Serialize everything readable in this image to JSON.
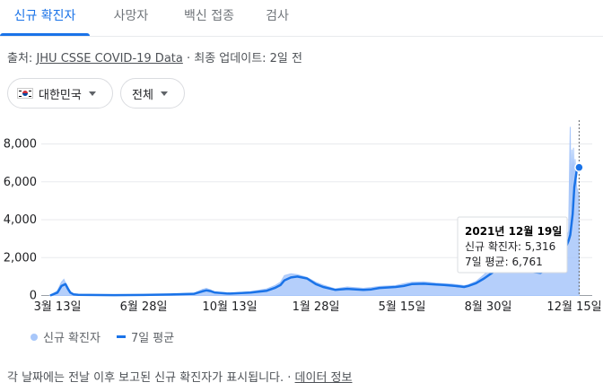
{
  "tabs": [
    {
      "label": "신규 확진자",
      "active": true
    },
    {
      "label": "사망자",
      "active": false
    },
    {
      "label": "백신 접종",
      "active": false
    },
    {
      "label": "검사",
      "active": false
    }
  ],
  "source": {
    "prefix": "출처: ",
    "link": "JHU CSSE COVID-19 Data",
    "suffix": " · 최종 업데이트: 2일 전"
  },
  "filters": {
    "country": "대한민국",
    "scope": "전체"
  },
  "legend": {
    "cases": "신규 확진자",
    "average": "7일 평균"
  },
  "tooltip": {
    "date": "2021년 12월 19일",
    "cases_label": "신규 확진자: ",
    "cases_value": "5,316",
    "avg_label": "7일 평균: ",
    "avg_value": "6,761"
  },
  "footer": {
    "text": "각 날짜에는 전날 이후 보고된 신규 확진자가 표시됩니다.",
    "sep": " · ",
    "link": "데이터 정보"
  },
  "colors": {
    "accent": "#1a73e8",
    "area": "#a8c7fa"
  },
  "chart_data": {
    "type": "area",
    "ylim": [
      0,
      9000
    ],
    "yticks": [
      0,
      2000,
      4000,
      6000,
      8000
    ],
    "ytick_labels": [
      "0",
      "2,000",
      "4,000",
      "6,000",
      "8,000"
    ],
    "xtick_labels": [
      "3월 13일",
      "6월 28일",
      "10월 13일",
      "1월 28일",
      "5월 15일",
      "8월 30일",
      "12월 15일"
    ],
    "xtick_days": [
      0,
      107,
      214,
      321,
      428,
      535,
      642
    ],
    "series": [
      {
        "name": "7일 평균",
        "x_days": [
          -9,
          0,
          5,
          10,
          13,
          16,
          20,
          26,
          40,
          70,
          107,
          140,
          170,
          180,
          185,
          190,
          195,
          210,
          214,
          240,
          260,
          270,
          277,
          282,
          290,
          298,
          310,
          321,
          330,
          345,
          360,
          380,
          390,
          400,
          420,
          430,
          440,
          455,
          470,
          480,
          490,
          500,
          505,
          510,
          520,
          530,
          540,
          550,
          555,
          560,
          570,
          580,
          600,
          610,
          620,
          630,
          635,
          637,
          640,
          642,
          645,
          648
        ],
        "y": [
          0,
          150,
          500,
          600,
          350,
          150,
          60,
          40,
          30,
          20,
          30,
          50,
          90,
          220,
          270,
          230,
          160,
          110,
          100,
          150,
          250,
          400,
          550,
          800,
          950,
          1000,
          900,
          600,
          450,
          300,
          350,
          300,
          320,
          400,
          450,
          500,
          600,
          620,
          580,
          560,
          520,
          480,
          450,
          500,
          650,
          900,
          1200,
          1600,
          1750,
          1700,
          1500,
          1300,
          1200,
          1400,
          1700,
          2400,
          2900,
          3200,
          4300,
          5700,
          6600,
          6761
        ]
      },
      {
        "name": "신규 확진자",
        "x_days": [
          -9,
          0,
          5,
          8,
          10,
          13,
          16,
          20,
          26,
          40,
          70,
          107,
          140,
          170,
          180,
          185,
          190,
          195,
          210,
          214,
          240,
          260,
          270,
          277,
          282,
          290,
          298,
          310,
          321,
          330,
          345,
          360,
          380,
          390,
          400,
          420,
          430,
          440,
          455,
          470,
          480,
          490,
          500,
          505,
          510,
          520,
          530,
          540,
          550,
          555,
          560,
          570,
          580,
          600,
          610,
          620,
          630,
          635,
          636,
          637,
          638,
          639,
          640,
          641,
          642,
          643,
          645,
          648
        ],
        "y": [
          0,
          250,
          700,
          850,
          650,
          450,
          200,
          80,
          60,
          40,
          30,
          40,
          70,
          130,
          320,
          380,
          300,
          180,
          140,
          120,
          200,
          350,
          520,
          700,
          1050,
          1150,
          1100,
          950,
          700,
          550,
          350,
          450,
          380,
          420,
          480,
          520,
          620,
          700,
          720,
          650,
          620,
          600,
          550,
          520,
          560,
          750,
          1100,
          1500,
          1900,
          2100,
          2000,
          1800,
          1500,
          1400,
          1600,
          2000,
          2700,
          3400,
          6300,
          8900,
          4700,
          7700,
          5700,
          7800,
          6000,
          7200,
          5700,
          5316
        ]
      }
    ]
  }
}
